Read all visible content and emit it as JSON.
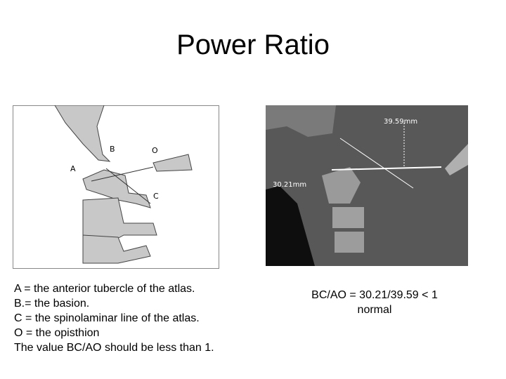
{
  "header": {
    "title": "Power Ratio"
  },
  "diagram": {
    "labels": {
      "b": "B",
      "o": "O",
      "a": "A",
      "c": "C"
    }
  },
  "scan": {
    "labels": {
      "ao": "39.59mm",
      "bc": "30.21mm"
    }
  },
  "legend": {
    "lines": [
      "A = the anterior tubercle of the atlas.",
      "B.= the basion.",
      "C = the spinolaminar line of the atlas.",
      "O = the opisthion",
      "The value BC/AO should be less than 1."
    ]
  },
  "result": {
    "lines": [
      "BC/AO = 30.21/39.59 < 1",
      "normal"
    ]
  }
}
